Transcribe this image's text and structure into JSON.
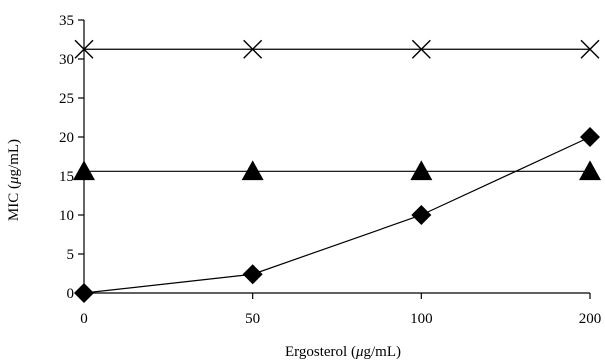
{
  "chart_data": {
    "type": "line",
    "categories": [
      "0",
      "50",
      "100",
      "200"
    ],
    "xlabel_parts": [
      "Ergosterol (",
      "μ",
      "g/mL)"
    ],
    "ylabel_parts": [
      "MIC (",
      "μ",
      "g/mL)"
    ],
    "ylim": [
      0,
      35
    ],
    "yticks": [
      0,
      5,
      10,
      15,
      20,
      25,
      30,
      35
    ],
    "grid": false,
    "legend": "none",
    "series": [
      {
        "marker": "x-cross",
        "color": "#000000",
        "values": [
          31.25,
          31.25,
          31.25,
          31.25
        ]
      },
      {
        "marker": "triangle",
        "color": "#000000",
        "values": [
          15.6,
          15.6,
          15.6,
          15.6
        ]
      },
      {
        "marker": "diamond",
        "color": "#000000",
        "values": [
          0,
          2.4,
          10,
          20
        ]
      }
    ]
  }
}
